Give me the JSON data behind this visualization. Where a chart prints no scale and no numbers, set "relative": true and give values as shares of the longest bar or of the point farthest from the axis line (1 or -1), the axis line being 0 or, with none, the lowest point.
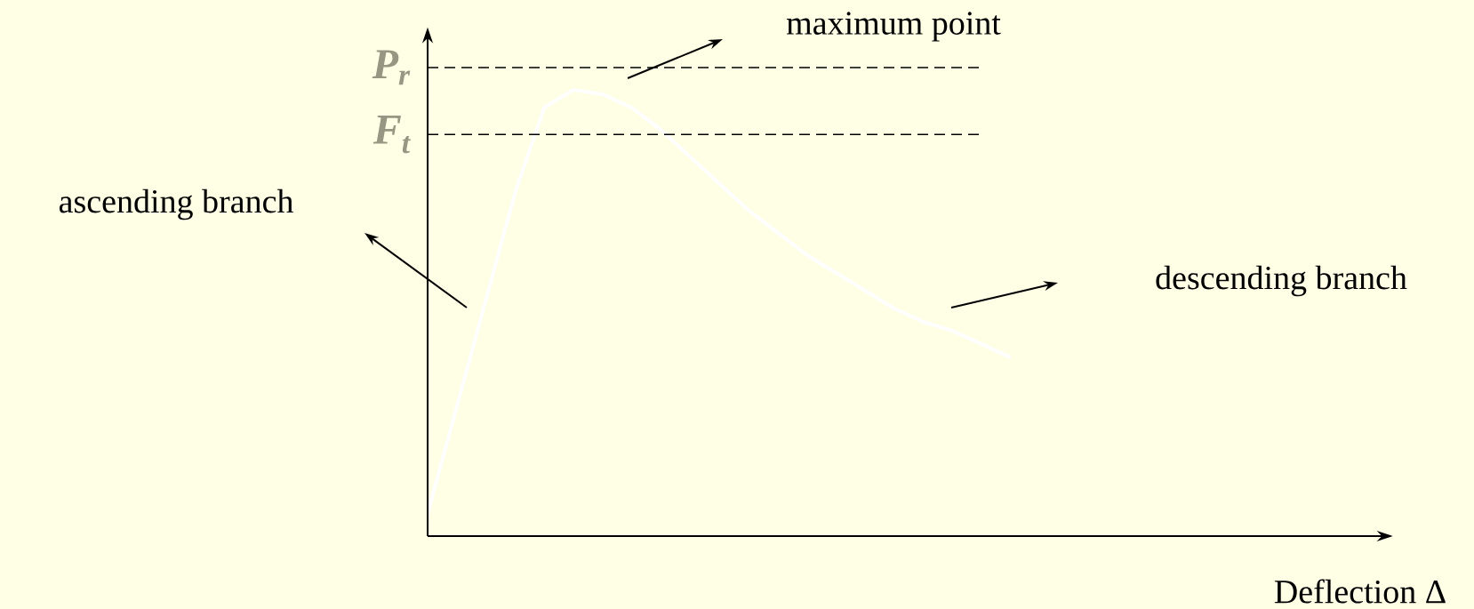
{
  "chart_data": {
    "type": "line",
    "relative": true,
    "categories": [
      null,
      null,
      null,
      null,
      null,
      null,
      null,
      null,
      null,
      null,
      null,
      null,
      null,
      null,
      null,
      null,
      null,
      null,
      null,
      null,
      null
    ],
    "series": [
      {
        "color": "#ffffff",
        "values": [
          0.05,
          0.29,
          0.53,
          0.77,
          0.96,
          1.0,
          0.99,
          0.96,
          0.91,
          0.85,
          0.79,
          0.73,
          0.68,
          0.63,
          0.59,
          0.55,
          0.51,
          0.48,
          0.46,
          0.43,
          0.4
        ]
      }
    ],
    "ref_lines": [
      {
        "axis": "y",
        "value": 1.05,
        "label": "*P*$_{r}$",
        "color": "#000000",
        "line_style": "dashed"
      },
      {
        "axis": "y",
        "value": 0.9,
        "label": "*F*$_{t}$",
        "color": "#000000",
        "line_style": "dashed"
      }
    ],
    "annotations": [
      "maximum point",
      "ascending branch",
      "descending branch",
      "Deflection Δ"
    ],
    "marker": "none",
    "line_style": "solid"
  }
}
